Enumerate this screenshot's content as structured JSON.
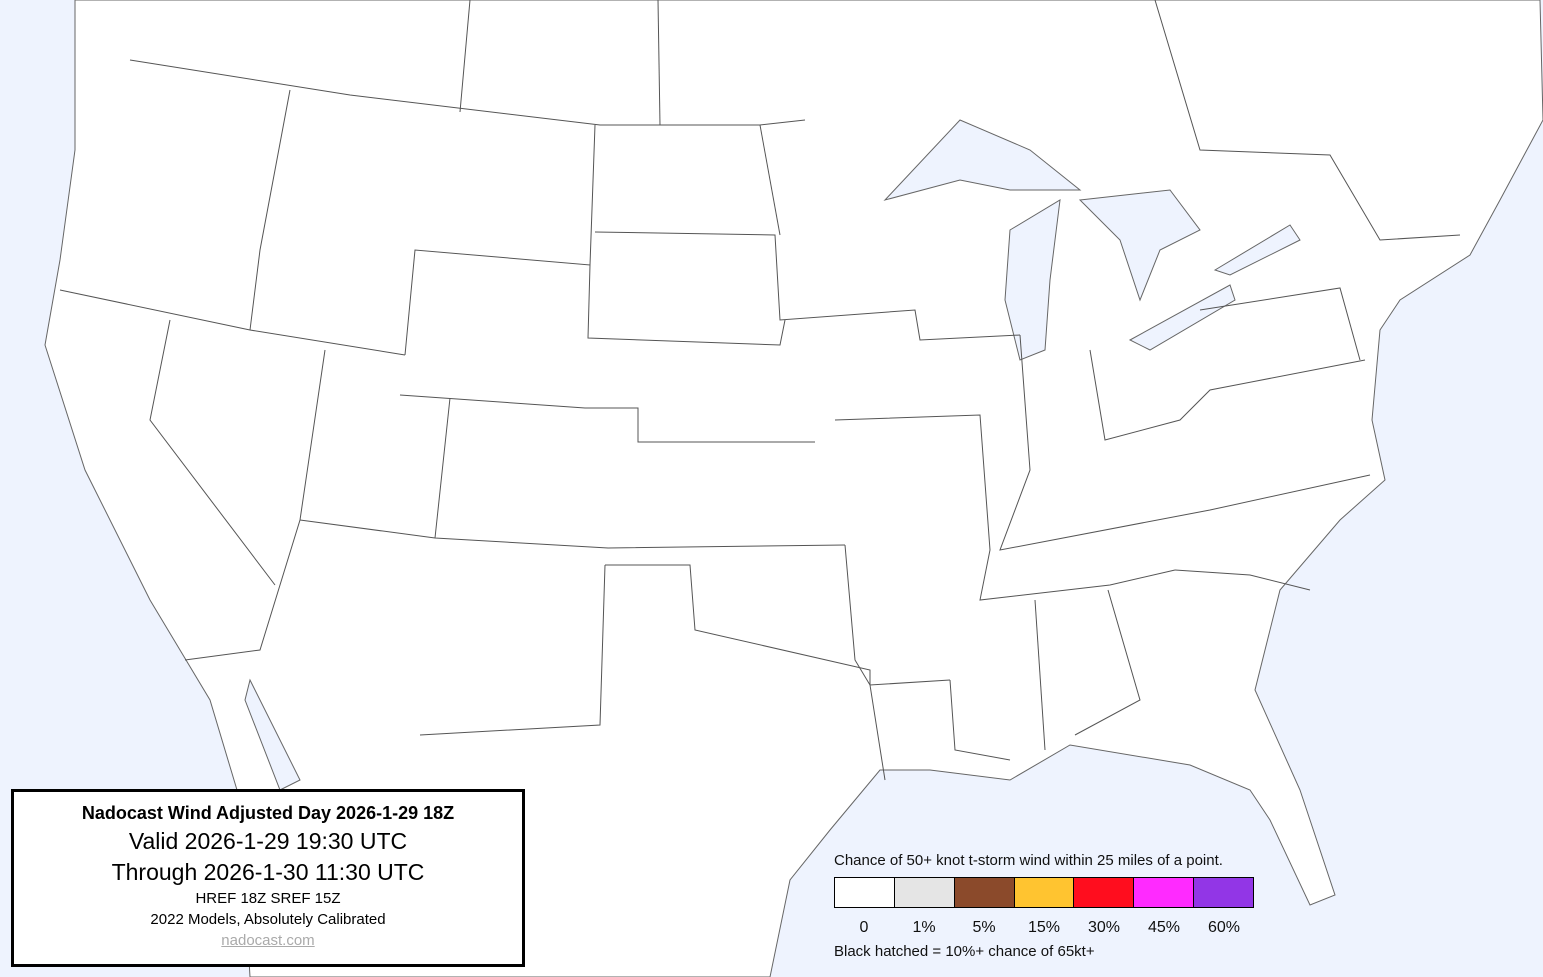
{
  "info": {
    "title": "Nadocast Wind Adjusted Day 2026-1-29 18Z",
    "valid": "Valid 2026-1-29 19:30 UTC",
    "through": "Through 2026-1-30 11:30 UTC",
    "models": "HREF 18Z SREF 15Z",
    "calibration": "2022 Models, Absolutely Calibrated",
    "link": "nadocast.com"
  },
  "legend": {
    "title": "Chance of 50+ knot t-storm wind within 25 miles of a point.",
    "bins": [
      {
        "label": "0",
        "color": "#ffffff"
      },
      {
        "label": "1%",
        "color": "#e5e5e5"
      },
      {
        "label": "5%",
        "color": "#8b4a2b"
      },
      {
        "label": "15%",
        "color": "#ffc430"
      },
      {
        "label": "30%",
        "color": "#ff0d1e"
      },
      {
        "label": "45%",
        "color": "#ff2aff"
      },
      {
        "label": "60%",
        "color": "#9236e6"
      }
    ],
    "footnote": "Black hatched = 10%+ chance of 65kt+"
  },
  "colors": {
    "water": "#eef3fe",
    "land": "#ffffff",
    "borders": "#555555"
  }
}
